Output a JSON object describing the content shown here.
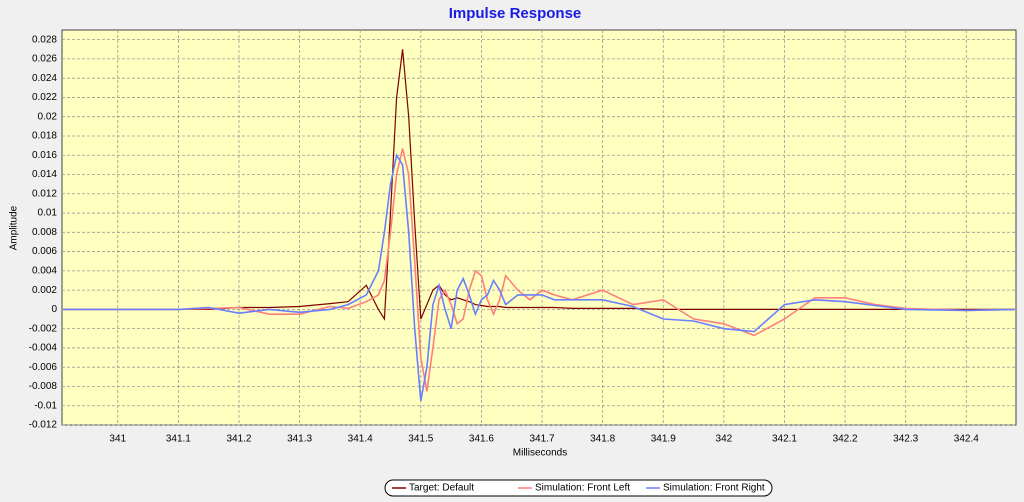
{
  "chart_data": {
    "type": "line",
    "title": "Impulse Response",
    "xlabel": "Milliseconds",
    "ylabel": "Amplitude",
    "x": [
      340.91,
      341.0,
      341.1,
      341.15,
      341.2,
      341.25,
      341.3,
      341.35,
      341.38,
      341.41,
      341.43,
      341.44,
      341.45,
      341.46,
      341.47,
      341.48,
      341.49,
      341.5,
      341.51,
      341.52,
      341.53,
      341.54,
      341.55,
      341.56,
      341.57,
      341.58,
      341.59,
      341.6,
      341.61,
      341.62,
      341.63,
      341.64,
      341.66,
      341.68,
      341.7,
      341.72,
      341.75,
      341.8,
      341.85,
      341.9,
      341.95,
      342.0,
      342.05,
      342.1,
      342.15,
      342.2,
      342.25,
      342.3,
      342.4,
      342.48
    ],
    "series": [
      {
        "name": "Target: Default",
        "color": "#800000",
        "values": [
          0,
          0,
          0,
          0,
          0.0002,
          0.0002,
          0.0003,
          0.0006,
          0.0008,
          0.0025,
          0,
          -0.001,
          0.01,
          0.022,
          0.027,
          0.02,
          0.009,
          -0.001,
          0.0005,
          0.002,
          0.0025,
          0.0015,
          0.001,
          0.0012,
          0.001,
          0.0008,
          0.0005,
          0.0004,
          0.0003,
          0.0003,
          0.0003,
          0.0002,
          0.0002,
          0.0002,
          0.0002,
          0.0002,
          0.0001,
          0.0001,
          0.0001,
          0,
          0,
          0,
          0,
          0,
          0,
          0,
          0,
          0,
          0,
          0
        ]
      },
      {
        "name": "Simulation: Front Left",
        "color": "#ff7f7f",
        "values": [
          0,
          0,
          0,
          0.0001,
          0.0002,
          -0.0005,
          -0.0005,
          0.0003,
          0.0001,
          0.0008,
          0.0015,
          0.003,
          0.008,
          0.014,
          0.0167,
          0.014,
          0.005,
          -0.005,
          -0.0085,
          -0.004,
          0.001,
          0.002,
          0.0005,
          -0.0015,
          -0.001,
          0.002,
          0.004,
          0.0035,
          0.001,
          -0.0005,
          0.001,
          0.0035,
          0.002,
          0.001,
          0.002,
          0.0015,
          0.001,
          0.002,
          0.0005,
          0.001,
          -0.001,
          -0.0015,
          -0.0027,
          -0.001,
          0.0012,
          0.0012,
          0.0005,
          0.0001,
          -0.0001,
          0
        ]
      },
      {
        "name": "Simulation: Front Right",
        "color": "#6a7fff",
        "values": [
          0,
          0,
          0,
          0.0002,
          -0.0004,
          0,
          -0.0003,
          0,
          0.0005,
          0.0015,
          0.004,
          0.008,
          0.013,
          0.016,
          0.015,
          0.008,
          -0.002,
          -0.0095,
          -0.006,
          0.0005,
          0.0025,
          0,
          -0.002,
          0.002,
          0.0032,
          0.0015,
          -0.0005,
          0.001,
          0.0015,
          0.003,
          0.002,
          0.0005,
          0.0015,
          0.0015,
          0.0015,
          0.001,
          0.001,
          0.001,
          0.0003,
          -0.001,
          -0.0012,
          -0.002,
          -0.0023,
          0.0005,
          0.001,
          0.0008,
          0.0004,
          0,
          -0.0001,
          0
        ]
      }
    ],
    "xlim": [
      340.908,
      342.482
    ],
    "xticks": [
      341,
      341.1,
      341.2,
      341.3,
      341.4,
      341.5,
      341.6,
      341.7,
      341.8,
      341.9,
      342,
      342.1,
      342.2,
      342.3,
      342.4
    ],
    "ylim": [
      -0.012,
      0.029
    ],
    "yticks": [
      -0.012,
      -0.01,
      -0.008,
      -0.006,
      -0.004,
      -0.002,
      0,
      0.002,
      0.004,
      0.006,
      0.008,
      0.01,
      0.012,
      0.014,
      0.016,
      0.018,
      0.02,
      0.022,
      0.024,
      0.026,
      0.028
    ],
    "grid": true,
    "legend": "bottom"
  }
}
